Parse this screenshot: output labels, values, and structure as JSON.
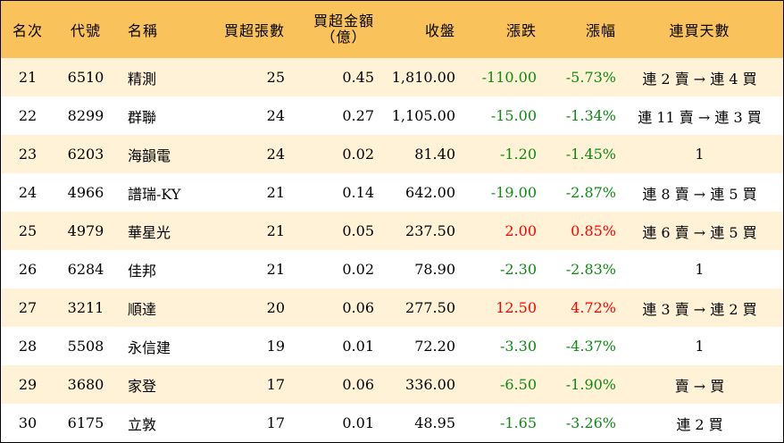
{
  "headers": {
    "rank": "名次",
    "code": "代號",
    "name": "名稱",
    "buy_lots": "買超張數",
    "buy_amount_line1": "買超金額",
    "buy_amount_line2": "（億）",
    "close": "收盤",
    "change": "漲跌",
    "change_pct": "漲幅",
    "streak": "連買天數"
  },
  "colors": {
    "header_bg": "#f9c25a",
    "odd_row_bg": "#fff2d6",
    "down": "#0c8a12",
    "up": "#ff0000"
  },
  "rows": [
    {
      "rank": "21",
      "code": "6510",
      "name": "精測",
      "lots": "25",
      "amount": "0.45",
      "close": "1,810.00",
      "change": "-110.00",
      "pct": "-5.73%",
      "streak": "連 2 賣 → 連 4 買",
      "dir": "down"
    },
    {
      "rank": "22",
      "code": "8299",
      "name": "群聯",
      "lots": "24",
      "amount": "0.27",
      "close": "1,105.00",
      "change": "-15.00",
      "pct": "-1.34%",
      "streak": "連 11 賣 → 連 3 買",
      "dir": "down"
    },
    {
      "rank": "23",
      "code": "6203",
      "name": "海韻電",
      "lots": "24",
      "amount": "0.02",
      "close": "81.40",
      "change": "-1.20",
      "pct": "-1.45%",
      "streak": "1",
      "dir": "down"
    },
    {
      "rank": "24",
      "code": "4966",
      "name": "譜瑞-KY",
      "lots": "21",
      "amount": "0.14",
      "close": "642.00",
      "change": "-19.00",
      "pct": "-2.87%",
      "streak": "連 8 賣 → 連 5 買",
      "dir": "down"
    },
    {
      "rank": "25",
      "code": "4979",
      "name": "華星光",
      "lots": "21",
      "amount": "0.05",
      "close": "237.50",
      "change": "2.00",
      "pct": "0.85%",
      "streak": "連 6 賣 → 連 5 買",
      "dir": "up"
    },
    {
      "rank": "26",
      "code": "6284",
      "name": "佳邦",
      "lots": "21",
      "amount": "0.02",
      "close": "78.90",
      "change": "-2.30",
      "pct": "-2.83%",
      "streak": "1",
      "dir": "down"
    },
    {
      "rank": "27",
      "code": "3211",
      "name": "順達",
      "lots": "20",
      "amount": "0.06",
      "close": "277.50",
      "change": "12.50",
      "pct": "4.72%",
      "streak": "連 3 賣 → 連 2 買",
      "dir": "up"
    },
    {
      "rank": "28",
      "code": "5508",
      "name": "永信建",
      "lots": "19",
      "amount": "0.01",
      "close": "72.20",
      "change": "-3.30",
      "pct": "-4.37%",
      "streak": "1",
      "dir": "down"
    },
    {
      "rank": "29",
      "code": "3680",
      "name": "家登",
      "lots": "17",
      "amount": "0.06",
      "close": "336.00",
      "change": "-6.50",
      "pct": "-1.90%",
      "streak": "賣 → 買",
      "dir": "down"
    },
    {
      "rank": "30",
      "code": "6175",
      "name": "立敦",
      "lots": "17",
      "amount": "0.01",
      "close": "48.95",
      "change": "-1.65",
      "pct": "-3.26%",
      "streak": "連 2 買",
      "dir": "down"
    }
  ]
}
